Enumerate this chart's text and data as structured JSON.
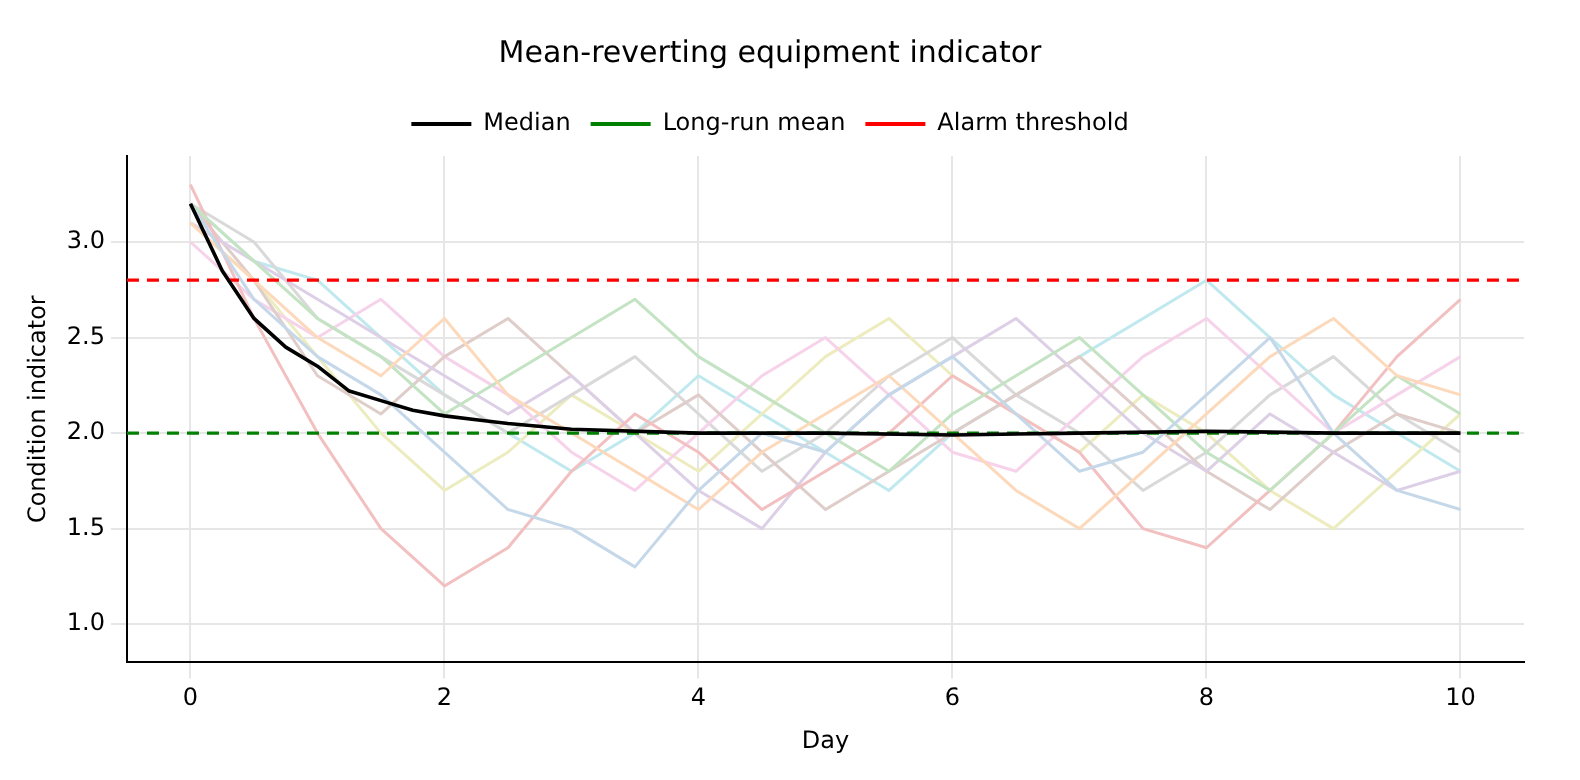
{
  "chart_data": {
    "type": "line",
    "title": "Mean-reverting equipment indicator",
    "xlabel": "Day",
    "ylabel": "Condition indicator",
    "x": [
      0,
      0.5,
      1,
      1.5,
      2,
      2.5,
      3,
      3.5,
      4,
      4.5,
      5,
      5.5,
      6,
      6.5,
      7,
      7.5,
      8,
      8.5,
      9,
      9.5,
      10
    ],
    "series": [
      {
        "color": "#c5d8ea",
        "values": [
          3.2,
          2.7,
          2.4,
          2.2,
          1.9,
          1.6,
          1.5,
          1.3,
          1.7,
          2.0,
          1.9,
          2.2,
          2.4,
          2.1,
          1.8,
          1.9,
          2.2,
          2.5,
          2.0,
          1.7,
          1.6
        ]
      },
      {
        "color": "#fdd9bb",
        "values": [
          3.1,
          2.8,
          2.5,
          2.3,
          2.6,
          2.2,
          2.0,
          1.8,
          1.6,
          1.9,
          2.1,
          2.3,
          2.0,
          1.7,
          1.5,
          1.8,
          2.1,
          2.4,
          2.6,
          2.3,
          2.2
        ]
      },
      {
        "color": "#c3e3c3",
        "values": [
          3.2,
          2.9,
          2.6,
          2.4,
          2.1,
          2.3,
          2.5,
          2.7,
          2.4,
          2.2,
          2.0,
          1.8,
          2.1,
          2.3,
          2.5,
          2.2,
          1.9,
          1.7,
          2.0,
          2.3,
          2.1
        ]
      },
      {
        "color": "#f2c0c0",
        "values": [
          3.3,
          2.6,
          2.0,
          1.5,
          1.2,
          1.4,
          1.8,
          2.1,
          1.9,
          1.6,
          1.8,
          2.0,
          2.3,
          2.1,
          1.9,
          1.5,
          1.4,
          1.7,
          2.0,
          2.4,
          2.7
        ]
      },
      {
        "color": "#dccfe6",
        "values": [
          3.1,
          2.9,
          2.7,
          2.5,
          2.3,
          2.1,
          2.3,
          2.0,
          1.7,
          1.5,
          1.9,
          2.2,
          2.4,
          2.6,
          2.3,
          2.0,
          1.8,
          2.1,
          1.9,
          1.7,
          1.8
        ]
      },
      {
        "color": "#dfcdc9",
        "values": [
          3.2,
          2.8,
          2.3,
          2.1,
          2.4,
          2.6,
          2.3,
          2.0,
          2.2,
          1.9,
          1.6,
          1.8,
          2.0,
          2.2,
          2.4,
          2.1,
          1.8,
          1.6,
          1.9,
          2.1,
          2.0
        ]
      },
      {
        "color": "#f6d3ea",
        "values": [
          3.0,
          2.7,
          2.5,
          2.7,
          2.4,
          2.2,
          1.9,
          1.7,
          2.0,
          2.3,
          2.5,
          2.2,
          1.9,
          1.8,
          2.1,
          2.4,
          2.6,
          2.3,
          2.0,
          2.2,
          2.4
        ]
      },
      {
        "color": "#d9d9d9",
        "values": [
          3.2,
          3.0,
          2.6,
          2.4,
          2.2,
          2.0,
          2.2,
          2.4,
          2.1,
          1.8,
          2.0,
          2.3,
          2.5,
          2.2,
          2.0,
          1.7,
          1.9,
          2.2,
          2.4,
          2.1,
          1.9
        ]
      },
      {
        "color": "#ececbf",
        "values": [
          3.1,
          2.8,
          2.4,
          2.0,
          1.7,
          1.9,
          2.2,
          2.0,
          1.8,
          2.1,
          2.4,
          2.6,
          2.3,
          2.1,
          1.9,
          2.2,
          2.0,
          1.7,
          1.5,
          1.8,
          2.1
        ]
      },
      {
        "color": "#bfe9ee",
        "values": [
          3.2,
          2.9,
          2.8,
          2.5,
          2.2,
          2.0,
          1.8,
          2.0,
          2.3,
          2.1,
          1.9,
          1.7,
          2.0,
          2.2,
          2.4,
          2.6,
          2.8,
          2.5,
          2.2,
          2.0,
          1.8
        ]
      },
      {
        "name": "Median",
        "color": "#000000",
        "x": [
          0,
          0.25,
          0.5,
          0.75,
          1,
          1.25,
          1.5,
          1.75,
          2,
          2.25,
          2.5,
          3,
          4,
          5,
          6,
          7,
          8,
          9,
          10
        ],
        "values": [
          3.2,
          2.85,
          2.6,
          2.45,
          2.35,
          2.22,
          2.17,
          2.12,
          2.09,
          2.07,
          2.05,
          2.02,
          2.0,
          2.0,
          1.99,
          2.0,
          2.01,
          2.0,
          2.0
        ]
      }
    ],
    "ref_lines": [
      {
        "axis": "y",
        "value": 2,
        "label": "Long-run mean",
        "color": "#008000",
        "line_style": "dashed"
      },
      {
        "axis": "y",
        "value": 2.8,
        "label": "Alarm threshold",
        "color": "#ff0000",
        "line_style": "dashed"
      }
    ],
    "xlim": [
      -0.5,
      10.5
    ],
    "xticks": [
      0,
      2,
      4,
      6,
      8,
      10
    ],
    "ylim": [
      0.8,
      3.45
    ],
    "yticks": [
      {
        "value": 1,
        "label": "1.0"
      },
      {
        "value": 1.5,
        "label": "1.5"
      },
      {
        "value": 2,
        "label": "2.0"
      },
      {
        "value": 2.5,
        "label": "2.5"
      },
      {
        "value": 3,
        "label": "3.0"
      }
    ],
    "grid": true,
    "legend": "top",
    "marker": "none",
    "line_style": "solid"
  }
}
